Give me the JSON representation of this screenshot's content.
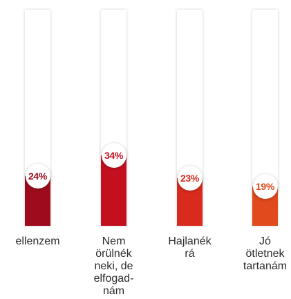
{
  "chart_data": {
    "type": "bar",
    "title": "",
    "xlabel": "",
    "ylabel": "",
    "ylim": [
      0,
      100
    ],
    "categories": [
      "ellenzem",
      "Nem\nörülnék\nneki, de\nelfogad-\nnám",
      "Hajlanék\nrá",
      "Jó\nötletnek\ntartanám"
    ],
    "values": [
      24,
      34,
      23,
      19
    ],
    "value_labels": [
      "24%",
      "34%",
      "23%",
      "19%"
    ],
    "colors": [
      "#9e0b1c",
      "#c4101e",
      "#d92a1e",
      "#e04a1c"
    ],
    "label_colors": [
      "#9e0b1c",
      "#c4101e",
      "#d92a1e",
      "#e04a1c"
    ]
  }
}
